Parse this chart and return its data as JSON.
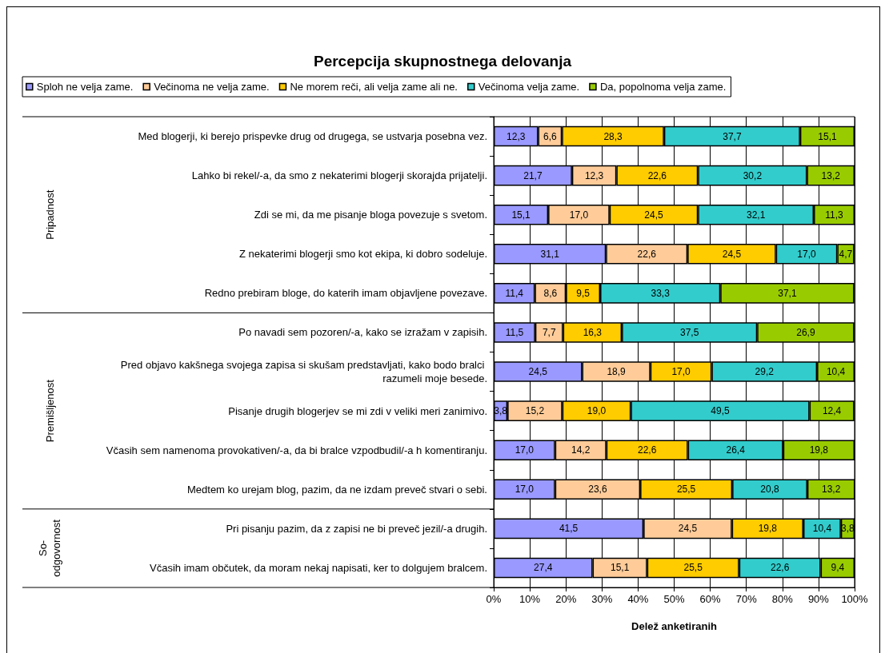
{
  "chart_data": {
    "type": "bar",
    "orientation": "horizontal",
    "stacked": true,
    "title": "Percepcija skupnostnega delovanja",
    "xlabel": "Delež anketiranih",
    "categories": [
      "Med blogerji, ki berejo prispevke drug od drugega, se ustvarja posebna vez.",
      "Lahko bi rekel/-a, da smo z nekaterimi blogerji skorajda prijatelji.",
      "Zdi se mi, da me pisanje bloga povezuje s svetom.",
      "Z nekaterimi blogerji smo kot ekipa, ki dobro sodeluje.",
      "Redno prebiram bloge, do katerih imam objavljene povezave.",
      "Po navadi sem pozoren/-a, kako se izražam v zapisih.",
      "Pred objavo kakšnega svojega zapisa si skušam predstavljati, kako bodo bralci razumeli moje besede.",
      "Pisanje drugih blogerjev se mi zdi v veliki meri zanimivo.",
      "Včasih sem namenoma provokativen/-a, da bi bralce vzpodbudil/-a h komentiranju.",
      "Medtem ko urejam blog, pazim, da ne izdam preveč stvari o sebi.",
      "Pri pisanju pazim, da z zapisi ne bi preveč jezil/-a drugih.",
      "Včasih imam občutek, da moram nekaj napisati, ker to dolgujem bralcem."
    ],
    "series": [
      {
        "name": "Sploh ne velja zame.",
        "color": "#9999ff",
        "values": [
          12.3,
          21.7,
          15.1,
          31.1,
          11.4,
          11.5,
          24.5,
          3.8,
          17.0,
          17.0,
          41.5,
          27.4
        ],
        "value_labels": [
          "12,3",
          "21,7",
          "15,1",
          "31,1",
          "11,4",
          "11,5",
          "24,5",
          "3,8",
          "17,0",
          "17,0",
          "41,5",
          "27,4"
        ]
      },
      {
        "name": "Večinoma ne velja zame.",
        "color": "#ffcc99",
        "values": [
          6.6,
          12.3,
          17.0,
          22.6,
          8.6,
          7.7,
          18.9,
          15.2,
          14.2,
          23.6,
          24.5,
          15.1
        ],
        "value_labels": [
          "6,6",
          "12,3",
          "17,0",
          "22,6",
          "8,6",
          "7,7",
          "18,9",
          "15,2",
          "14,2",
          "23,6",
          "24,5",
          "15,1"
        ]
      },
      {
        "name": "Ne morem reči, ali velja zame ali ne.",
        "color": "#ffcc00",
        "values": [
          28.3,
          22.6,
          24.5,
          24.5,
          9.5,
          16.3,
          17.0,
          19.0,
          22.6,
          25.5,
          19.8,
          25.5
        ],
        "value_labels": [
          "28,3",
          "22,6",
          "24,5",
          "24,5",
          "9,5",
          "16,3",
          "17,0",
          "19,0",
          "22,6",
          "25,5",
          "19,8",
          "25,5"
        ]
      },
      {
        "name": "Večinoma velja zame.",
        "color": "#33cccc",
        "values": [
          37.7,
          30.2,
          32.1,
          17.0,
          33.3,
          37.5,
          29.2,
          49.5,
          26.4,
          20.8,
          10.4,
          22.6
        ],
        "value_labels": [
          "37,7",
          "30,2",
          "32,1",
          "17,0",
          "33,3",
          "37,5",
          "29,2",
          "49,5",
          "26,4",
          "20,8",
          "10,4",
          "22,6"
        ]
      },
      {
        "name": "Da, popolnoma velja zame.",
        "color": "#99cc00",
        "values": [
          15.1,
          13.2,
          11.3,
          4.7,
          37.1,
          26.9,
          10.4,
          12.4,
          19.8,
          13.2,
          3.8,
          9.4
        ],
        "value_labels": [
          "15,1",
          "13,2",
          "11,3",
          "4,7",
          "37,1",
          "26,9",
          "10,4",
          "12,4",
          "19,8",
          "13,2",
          "3,8",
          "9,4"
        ]
      }
    ],
    "xlim": [
      0,
      100
    ],
    "xticks": [
      {
        "value": 0,
        "label": "0%"
      },
      {
        "value": 10,
        "label": "10%"
      },
      {
        "value": 20,
        "label": "20%"
      },
      {
        "value": 30,
        "label": "30%"
      },
      {
        "value": 40,
        "label": "40%"
      },
      {
        "value": 50,
        "label": "50%"
      },
      {
        "value": 60,
        "label": "60%"
      },
      {
        "value": 70,
        "label": "70%"
      },
      {
        "value": 80,
        "label": "80%"
      },
      {
        "value": 90,
        "label": "90%"
      },
      {
        "value": 100,
        "label": "100%"
      }
    ],
    "annotations": [
      "Pripadnost",
      "Premišljenost",
      "So-\nodgovornost"
    ],
    "grid": "x",
    "legend": "top"
  }
}
